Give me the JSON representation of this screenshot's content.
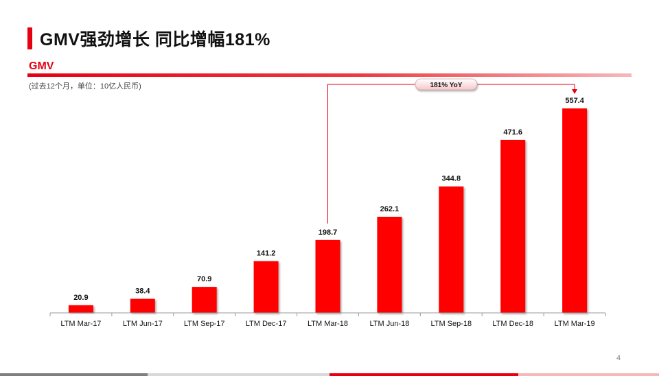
{
  "slide": {
    "title": "GMV强劲增长 同比增幅181%",
    "section_label": "GMV",
    "subtitle": "(过去12个月，单位：10亿人民币)",
    "page_number": "4"
  },
  "colors": {
    "accent": "#e60012",
    "bar": "#ff0000",
    "callout_fill": "#fde6e7"
  },
  "chart_data": {
    "type": "bar",
    "title": "",
    "xlabel": "",
    "ylabel": "",
    "categories": [
      "LTM Mar-17",
      "LTM Jun-17",
      "LTM Sep-17",
      "LTM Dec-17",
      "LTM Mar-18",
      "LTM Jun-18",
      "LTM Sep-18",
      "LTM Dec-18",
      "LTM Mar-19"
    ],
    "values": [
      20.9,
      38.4,
      70.9,
      141.2,
      198.7,
      262.1,
      344.8,
      471.6,
      557.4
    ],
    "value_labels": [
      "20.9",
      "38.4",
      "70.9",
      "141.2",
      "198.7",
      "262.1",
      "344.8",
      "471.6",
      "557.4"
    ],
    "ylim": [
      0,
      557.4
    ],
    "grid": false,
    "legend": "none",
    "annotation": {
      "text": "181% YoY",
      "from_category": "LTM Mar-18",
      "to_category": "LTM Mar-19"
    }
  }
}
